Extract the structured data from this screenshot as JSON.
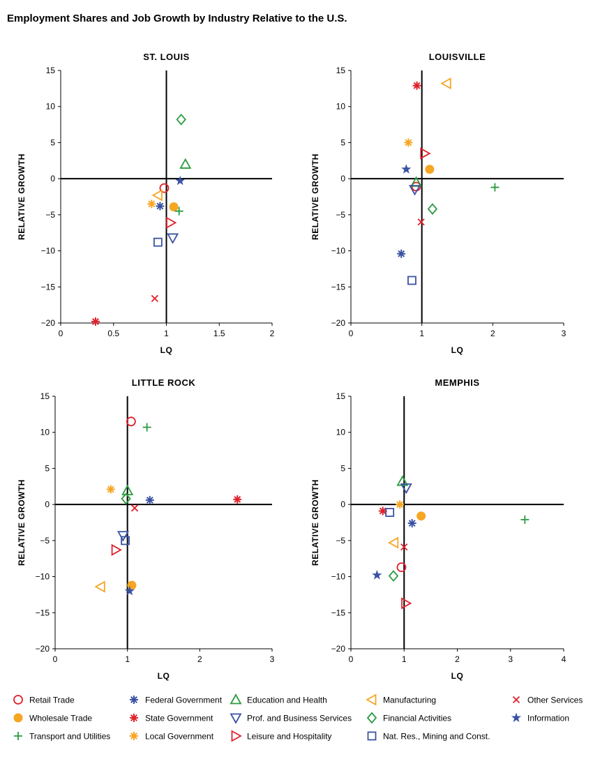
{
  "title": "Employment Shares and Job Growth by Industry Relative to the U.S.",
  "colors": {
    "red": "#e0212c",
    "orange": "#f5a623",
    "green": "#2a9a3f",
    "blue": "#3a52a3"
  },
  "legend": [
    {
      "key": "retail",
      "label": "Retail Trade",
      "symbol": "circle",
      "color": "red"
    },
    {
      "key": "wholesale",
      "label": "Wholesale Trade",
      "symbol": "dot",
      "color": "orange"
    },
    {
      "key": "transport",
      "label": "Transport and Utilities",
      "symbol": "plus",
      "color": "green"
    },
    {
      "key": "federal",
      "label": "Federal Government",
      "symbol": "asterisk",
      "color": "blue"
    },
    {
      "key": "state",
      "label": "State Government",
      "symbol": "asterisk",
      "color": "red"
    },
    {
      "key": "local",
      "label": "Local Government",
      "symbol": "asterisk",
      "color": "orange"
    },
    {
      "key": "education",
      "label": "Education and Health",
      "symbol": "triangle-up",
      "color": "green"
    },
    {
      "key": "prof",
      "label": "Prof. and Business Services",
      "symbol": "triangle-down",
      "color": "blue"
    },
    {
      "key": "leisure",
      "label": "Leisure and Hospitality",
      "symbol": "triangle-right",
      "color": "red"
    },
    {
      "key": "manufacturing",
      "label": "Manufacturing",
      "symbol": "triangle-left",
      "color": "orange"
    },
    {
      "key": "financial",
      "label": "Financial Activities",
      "symbol": "diamond",
      "color": "green"
    },
    {
      "key": "natres",
      "label": "Nat. Res., Mining and Const.",
      "symbol": "square",
      "color": "blue"
    },
    {
      "key": "other",
      "label": "Other Services",
      "symbol": "x",
      "color": "red"
    },
    {
      "key": "information",
      "label": "Information",
      "symbol": "star",
      "color": "blue"
    }
  ],
  "chart_data": [
    {
      "type": "scatter",
      "title": "ST. LOUIS",
      "xlabel": "LQ",
      "ylabel": "RELATIVE GROWTH",
      "xlim": [
        0,
        2
      ],
      "ylim": [
        -20,
        15
      ],
      "xticks": [
        "0",
        "0.5",
        "1",
        "1.5",
        "2"
      ],
      "xtick_values": [
        0,
        0.5,
        1,
        1.5,
        2
      ],
      "yticks": [
        "15",
        "10",
        "5",
        "0",
        "−5",
        "−10",
        "−15",
        "−20"
      ],
      "ytick_values": [
        15,
        10,
        5,
        0,
        -5,
        -10,
        -15,
        -20
      ],
      "points": [
        {
          "series": "retail",
          "x": 0.98,
          "y": -1.3
        },
        {
          "series": "wholesale",
          "x": 1.07,
          "y": -3.9
        },
        {
          "series": "transport",
          "x": 1.12,
          "y": -4.5
        },
        {
          "series": "federal",
          "x": 0.94,
          "y": -3.8
        },
        {
          "series": "state",
          "x": 0.33,
          "y": -19.8
        },
        {
          "series": "local",
          "x": 0.86,
          "y": -3.5
        },
        {
          "series": "education",
          "x": 1.18,
          "y": 2.0
        },
        {
          "series": "prof",
          "x": 1.06,
          "y": -8.2
        },
        {
          "series": "leisure",
          "x": 1.04,
          "y": -6.1
        },
        {
          "series": "manufacturing",
          "x": 0.92,
          "y": -2.3
        },
        {
          "series": "financial",
          "x": 1.14,
          "y": 8.2
        },
        {
          "series": "natres",
          "x": 0.92,
          "y": -8.8
        },
        {
          "series": "other",
          "x": 0.89,
          "y": -16.6
        },
        {
          "series": "information",
          "x": 1.13,
          "y": -0.3
        }
      ]
    },
    {
      "type": "scatter",
      "title": "LOUISVILLE",
      "xlabel": "LQ",
      "ylabel": "RELATIVE GROWTH",
      "xlim": [
        0,
        3
      ],
      "ylim": [
        -20,
        15
      ],
      "xticks": [
        "0",
        "1",
        "2",
        "3"
      ],
      "xtick_values": [
        0,
        1,
        2,
        3
      ],
      "yticks": [
        "15",
        "10",
        "5",
        "0",
        "−5",
        "−10",
        "−15",
        "−20"
      ],
      "ytick_values": [
        15,
        10,
        5,
        0,
        -5,
        -10,
        -15,
        -20
      ],
      "points": [
        {
          "series": "retail",
          "x": 0.92,
          "y": -1.1
        },
        {
          "series": "wholesale",
          "x": 1.11,
          "y": 1.3
        },
        {
          "series": "transport",
          "x": 2.03,
          "y": -1.2
        },
        {
          "series": "federal",
          "x": 0.71,
          "y": -10.4
        },
        {
          "series": "state",
          "x": 0.93,
          "y": 12.9
        },
        {
          "series": "local",
          "x": 0.81,
          "y": 5.0
        },
        {
          "series": "education",
          "x": 0.92,
          "y": -0.5
        },
        {
          "series": "prof",
          "x": 0.9,
          "y": -1.5
        },
        {
          "series": "leisure",
          "x": 1.04,
          "y": 3.5
        },
        {
          "series": "manufacturing",
          "x": 1.35,
          "y": 13.2
        },
        {
          "series": "financial",
          "x": 1.15,
          "y": -4.2
        },
        {
          "series": "natres",
          "x": 0.86,
          "y": -14.1
        },
        {
          "series": "other",
          "x": 0.99,
          "y": -6.0
        },
        {
          "series": "information",
          "x": 0.78,
          "y": 1.3
        }
      ]
    },
    {
      "type": "scatter",
      "title": "LITTLE ROCK",
      "xlabel": "LQ",
      "ylabel": "RELATIVE GROWTH",
      "xlim": [
        0,
        3
      ],
      "ylim": [
        -20,
        15
      ],
      "xticks": [
        "0",
        "1",
        "2",
        "3"
      ],
      "xtick_values": [
        0,
        1,
        2,
        3
      ],
      "yticks": [
        "15",
        "10",
        "5",
        "0",
        "−5",
        "−10",
        "−15",
        "−20"
      ],
      "ytick_values": [
        15,
        10,
        5,
        0,
        -5,
        -10,
        -15,
        -20
      ],
      "points": [
        {
          "series": "retail",
          "x": 1.05,
          "y": 11.5
        },
        {
          "series": "wholesale",
          "x": 1.06,
          "y": -11.2
        },
        {
          "series": "transport",
          "x": 1.27,
          "y": 10.7
        },
        {
          "series": "federal",
          "x": 1.31,
          "y": 0.6
        },
        {
          "series": "state",
          "x": 2.52,
          "y": 0.7
        },
        {
          "series": "local",
          "x": 0.77,
          "y": 2.1
        },
        {
          "series": "education",
          "x": 1.0,
          "y": 1.9
        },
        {
          "series": "prof",
          "x": 0.94,
          "y": -4.3
        },
        {
          "series": "leisure",
          "x": 0.84,
          "y": -6.3
        },
        {
          "series": "manufacturing",
          "x": 0.63,
          "y": -11.4
        },
        {
          "series": "financial",
          "x": 0.98,
          "y": 0.8
        },
        {
          "series": "natres",
          "x": 0.97,
          "y": -5.0
        },
        {
          "series": "other",
          "x": 1.1,
          "y": -0.5
        },
        {
          "series": "information",
          "x": 1.03,
          "y": -12.0
        }
      ]
    },
    {
      "type": "scatter",
      "title": "MEMPHIS",
      "xlabel": "LQ",
      "ylabel": "RELATIVE GROWTH",
      "xlim": [
        0,
        4
      ],
      "ylim": [
        -20,
        15
      ],
      "xticks": [
        "0",
        "1",
        "2",
        "3",
        "4"
      ],
      "xtick_values": [
        0,
        1,
        2,
        3,
        4
      ],
      "yticks": [
        "15",
        "10",
        "5",
        "0",
        "−5",
        "−10",
        "−15",
        "−20"
      ],
      "ytick_values": [
        15,
        10,
        5,
        0,
        -5,
        -10,
        -15,
        -20
      ],
      "points": [
        {
          "series": "retail",
          "x": 0.95,
          "y": -8.7
        },
        {
          "series": "wholesale",
          "x": 1.32,
          "y": -1.6
        },
        {
          "series": "transport",
          "x": 3.27,
          "y": -2.1
        },
        {
          "series": "federal",
          "x": 1.15,
          "y": -2.6
        },
        {
          "series": "state",
          "x": 0.6,
          "y": -0.9
        },
        {
          "series": "local",
          "x": 0.92,
          "y": 0.0
        },
        {
          "series": "education",
          "x": 0.97,
          "y": 3.2
        },
        {
          "series": "prof",
          "x": 1.04,
          "y": 2.3
        },
        {
          "series": "leisure",
          "x": 1.03,
          "y": -13.7
        },
        {
          "series": "manufacturing",
          "x": 0.81,
          "y": -5.3
        },
        {
          "series": "financial",
          "x": 0.8,
          "y": -9.9
        },
        {
          "series": "natres",
          "x": 0.73,
          "y": -1.1
        },
        {
          "series": "other",
          "x": 1.0,
          "y": -5.9
        },
        {
          "series": "information",
          "x": 0.49,
          "y": -9.8
        }
      ]
    }
  ]
}
